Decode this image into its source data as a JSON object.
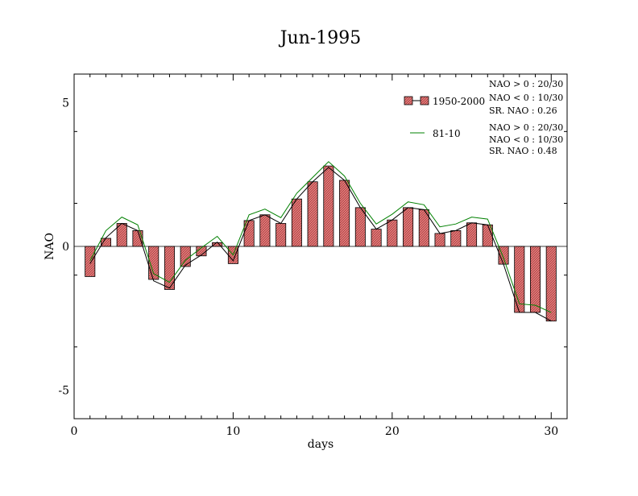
{
  "chart_data": {
    "type": "bar",
    "title": "Jun-1995",
    "xlabel": "days",
    "ylabel": "NAO",
    "xlim": [
      0,
      31
    ],
    "ylim": [
      -6,
      6
    ],
    "x_ticks": [
      0,
      10,
      20,
      30
    ],
    "x_tick_labels": [
      "0",
      "10",
      "20",
      "30"
    ],
    "y_ticks": [
      -5,
      0,
      5
    ],
    "y_tick_labels": [
      "-5",
      "0",
      "5"
    ],
    "legend_position": "top-right",
    "series": [
      {
        "name": "1950-2000",
        "type": "bar",
        "color": "#e88080",
        "x": [
          1,
          2,
          3,
          4,
          5,
          6,
          7,
          8,
          9,
          10,
          11,
          12,
          13,
          14,
          15,
          16,
          17,
          18,
          19,
          20,
          21,
          22,
          23,
          24,
          25,
          26,
          27,
          28,
          29,
          30
        ],
        "values": [
          -1.05,
          0.28,
          0.8,
          0.55,
          -1.15,
          -1.5,
          -0.7,
          -0.33,
          0.13,
          -0.6,
          0.9,
          1.1,
          0.8,
          1.65,
          2.25,
          2.8,
          2.3,
          1.35,
          0.6,
          0.92,
          1.35,
          1.28,
          0.45,
          0.55,
          0.82,
          0.75,
          -0.62,
          -2.3,
          -2.3,
          -2.6
        ]
      },
      {
        "name": "",
        "type": "line",
        "color": "#000000",
        "x": [
          1,
          2,
          3,
          4,
          5,
          6,
          7,
          8,
          9,
          10,
          11,
          12,
          13,
          14,
          15,
          16,
          17,
          18,
          19,
          20,
          21,
          22,
          23,
          24,
          25,
          26,
          27,
          28,
          29,
          30
        ],
        "values": [
          -0.6,
          0.3,
          0.8,
          0.55,
          -1.2,
          -1.45,
          -0.65,
          -0.3,
          0.15,
          -0.5,
          0.9,
          1.1,
          0.8,
          1.65,
          2.25,
          2.75,
          2.3,
          1.35,
          0.6,
          0.92,
          1.35,
          1.28,
          0.45,
          0.55,
          0.82,
          0.75,
          -0.62,
          -2.3,
          -2.3,
          -2.6
        ]
      },
      {
        "name": "81-10",
        "type": "line",
        "color": "#008000",
        "x": [
          1,
          2,
          3,
          4,
          5,
          6,
          7,
          8,
          9,
          10,
          11,
          12,
          13,
          14,
          15,
          16,
          17,
          18,
          19,
          20,
          21,
          22,
          23,
          24,
          25,
          26,
          27,
          28,
          29,
          30
        ],
        "values": [
          -0.5,
          0.55,
          1.02,
          0.75,
          -0.95,
          -1.25,
          -0.48,
          -0.05,
          0.35,
          -0.3,
          1.1,
          1.3,
          1.0,
          1.85,
          2.4,
          2.95,
          2.45,
          1.5,
          0.78,
          1.12,
          1.55,
          1.45,
          0.68,
          0.78,
          1.02,
          0.95,
          -0.4,
          -2.0,
          -2.05,
          -2.3
        ]
      }
    ],
    "stats": [
      {
        "series": "1950-2000",
        "lines": [
          "NAO > 0 : 20/30",
          "NAO < 0 : 10/30",
          "SR. NAO : 0.26"
        ]
      },
      {
        "series": "81-10",
        "lines": [
          "NAO > 0 : 20/30",
          "NAO < 0 : 10/30",
          "SR. NAO : 0.48"
        ]
      }
    ]
  }
}
